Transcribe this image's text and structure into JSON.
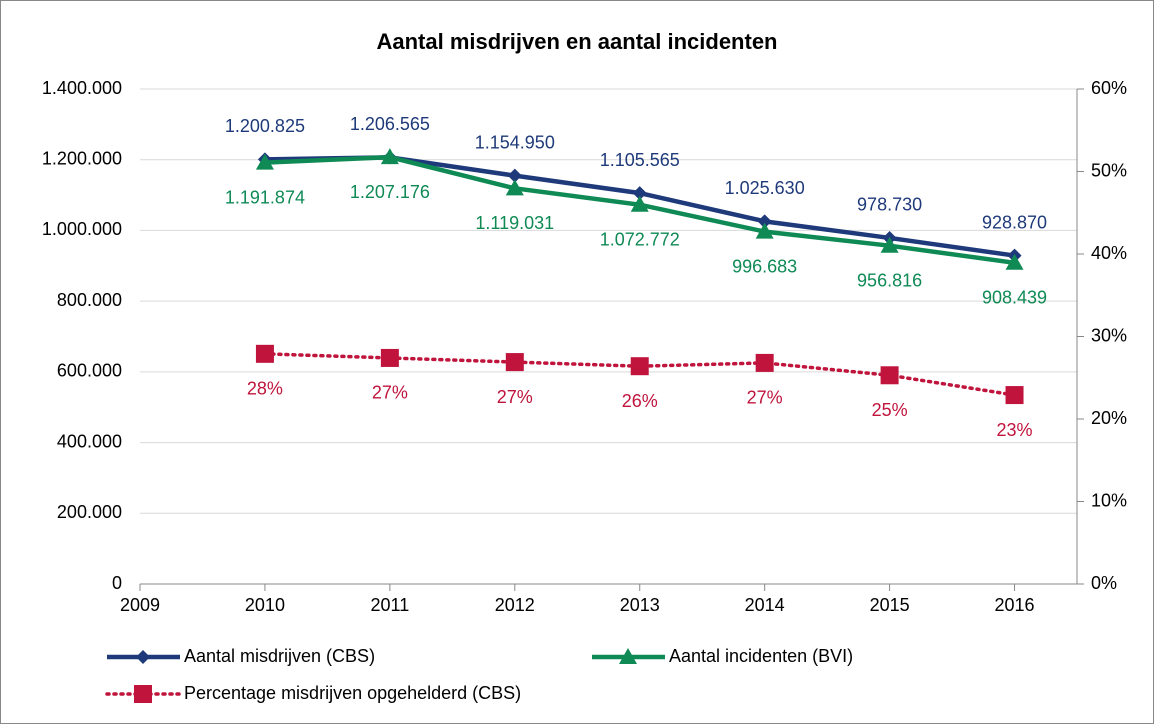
{
  "chart_data": {
    "type": "line",
    "title": "Aantal misdrijven en aantal incidenten",
    "x": [
      2010,
      2011,
      2012,
      2013,
      2014,
      2015,
      2016
    ],
    "xlim": [
      2009,
      2016.5
    ],
    "xticks": [
      2009,
      2010,
      2011,
      2012,
      2013,
      2014,
      2015,
      2016
    ],
    "ylim": [
      0,
      1400000
    ],
    "yticks": [
      0,
      {
        "value": 200000,
        "label": "200.000"
      },
      {
        "value": 400000,
        "label": "400.000"
      },
      {
        "value": 600000,
        "label": "600.000"
      },
      {
        "value": 800000,
        "label": "800.000"
      },
      {
        "value": 1000000,
        "label": "1.000.000"
      },
      {
        "value": 1200000,
        "label": "1.200.000"
      },
      {
        "value": 1400000,
        "label": "1.400.000"
      }
    ],
    "y2lim": [
      0,
      60
    ],
    "y2ticks": [
      {
        "value": 0,
        "label": "0%"
      },
      {
        "value": 10,
        "label": "10%"
      },
      {
        "value": 20,
        "label": "20%"
      },
      {
        "value": 30,
        "label": "30%"
      },
      {
        "value": 40,
        "label": "40%"
      },
      {
        "value": 50,
        "label": "50%"
      },
      {
        "value": 60,
        "label": "60%"
      }
    ],
    "grid": true,
    "legend": "bottom",
    "series": [
      {
        "name": "Aantal misdrijven (CBS)",
        "color": "#1f3a7a",
        "marker": "diamond",
        "values": [
          1200825,
          1206565,
          1154950,
          1105565,
          1025630,
          978730,
          928870
        ],
        "value_labels": [
          "1.200.825",
          "1.206.565",
          "1.154.950",
          "1.105.565",
          "1.025.630",
          "978.730",
          "928.870"
        ]
      },
      {
        "name": "Aantal incidenten (BVI)",
        "color": "#0f8a55",
        "marker": "triangle",
        "values": [
          1191874,
          1207176,
          1119031,
          1072772,
          996683,
          956816,
          908439
        ],
        "value_labels": [
          "1.191.874",
          "1.207.176",
          "1.119.031",
          "1.072.772",
          "996.683",
          "956.816",
          "908.439"
        ]
      },
      {
        "name": "Percentage misdrijven opgehelderd (CBS)",
        "color": "#c0143c",
        "marker": "square",
        "axis": "y2",
        "dash": "dotted",
        "values": [
          27.9,
          27.4,
          26.9,
          26.4,
          26.8,
          25.3,
          22.9
        ],
        "value_labels": [
          "28%",
          "27%",
          "27%",
          "26%",
          "27%",
          "25%",
          "23%"
        ]
      }
    ]
  }
}
